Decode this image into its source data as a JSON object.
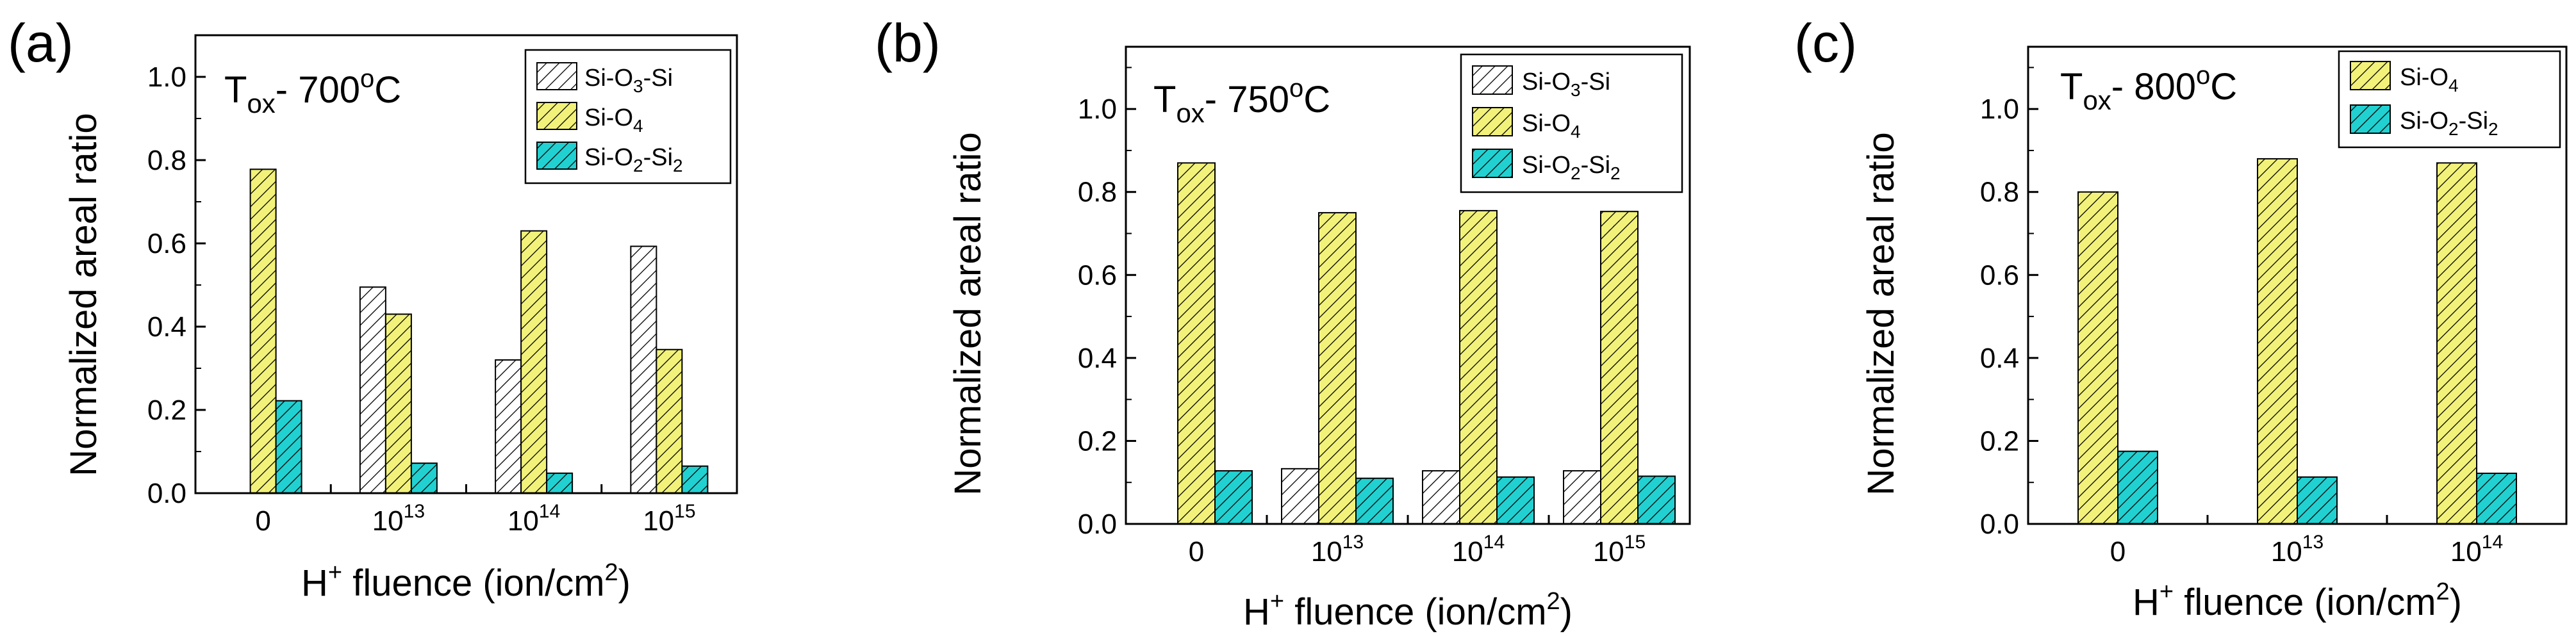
{
  "colors": {
    "si_o3_si": "#ffffff",
    "si_o4": "#f2f27a",
    "si_o2_si2": "#21d1d1",
    "hatch": "#000000"
  },
  "chart_data": [
    {
      "type": "bar",
      "panel_label": "(a)",
      "condition": {
        "main": "T",
        "sub": "ox",
        "text": "- 700",
        "sup": "o",
        "unit": "C"
      },
      "ylabel": "Normalized areal ratio",
      "xlabel": {
        "pre": "H",
        "sup": "+",
        "text": " fluence (ion/cm",
        "sup2": "2",
        "post": ")"
      },
      "ylim": [
        0,
        1.1
      ],
      "yticks": [
        "0.0",
        "0.2",
        "0.4",
        "0.6",
        "0.8",
        "1.0"
      ],
      "categories": [
        {
          "base": "0",
          "exp": ""
        },
        {
          "base": "10",
          "exp": "13"
        },
        {
          "base": "10",
          "exp": "14"
        },
        {
          "base": "10",
          "exp": "15"
        }
      ],
      "series": [
        {
          "key": "si_o3_si",
          "name": {
            "a": "Si-O",
            "sub": "3",
            "b": "-Si",
            "sub2": "",
            "c": ""
          },
          "values": [
            null,
            0.495,
            0.32,
            0.593
          ]
        },
        {
          "key": "si_o4",
          "name": {
            "a": "Si-O",
            "sub": "4",
            "b": "",
            "sub2": "",
            "c": ""
          },
          "values": [
            0.778,
            0.43,
            0.63,
            0.345
          ]
        },
        {
          "key": "si_o2_si2",
          "name": {
            "a": "Si-O",
            "sub": "2",
            "b": "-Si",
            "sub2": "2",
            "c": ""
          },
          "values": [
            0.222,
            0.072,
            0.048,
            0.065
          ]
        }
      ]
    },
    {
      "type": "bar",
      "panel_label": "(b)",
      "condition": {
        "main": "T",
        "sub": "ox",
        "text": "- 750",
        "sup": "o",
        "unit": "C"
      },
      "ylabel": "Normalized areal ratio",
      "xlabel": {
        "pre": "H",
        "sup": "+",
        "text": " fluence (ion/cm",
        "sup2": "2",
        "post": ")"
      },
      "ylim": [
        0,
        1.15
      ],
      "yticks": [
        "0.0",
        "0.2",
        "0.4",
        "0.6",
        "0.8",
        "1.0"
      ],
      "categories": [
        {
          "base": "0",
          "exp": ""
        },
        {
          "base": "10",
          "exp": "13"
        },
        {
          "base": "10",
          "exp": "14"
        },
        {
          "base": "10",
          "exp": "15"
        }
      ],
      "series": [
        {
          "key": "si_o3_si",
          "name": {
            "a": "Si-O",
            "sub": "3",
            "b": "-Si",
            "sub2": "",
            "c": ""
          },
          "values": [
            null,
            0.133,
            0.128,
            0.128
          ]
        },
        {
          "key": "si_o4",
          "name": {
            "a": "Si-O",
            "sub": "4",
            "b": "",
            "sub2": "",
            "c": ""
          },
          "values": [
            0.87,
            0.75,
            0.755,
            0.753
          ]
        },
        {
          "key": "si_o2_si2",
          "name": {
            "a": "Si-O",
            "sub": "2",
            "b": "-Si",
            "sub2": "2",
            "c": ""
          },
          "values": [
            0.128,
            0.11,
            0.113,
            0.115
          ]
        }
      ]
    },
    {
      "type": "bar",
      "panel_label": "(c)",
      "condition": {
        "main": "T",
        "sub": "ox",
        "text": "- 800",
        "sup": "o",
        "unit": "C"
      },
      "ylabel": "Normalized areal ratio",
      "xlabel": {
        "pre": "H",
        "sup": "+",
        "text": " fluence (ion/cm",
        "sup2": "2",
        "post": ")"
      },
      "ylim": [
        0,
        1.15
      ],
      "yticks": [
        "0.0",
        "0.2",
        "0.4",
        "0.6",
        "0.8",
        "1.0"
      ],
      "categories": [
        {
          "base": "0",
          "exp": ""
        },
        {
          "base": "10",
          "exp": "13"
        },
        {
          "base": "10",
          "exp": "14"
        }
      ],
      "series": [
        {
          "key": "si_o4",
          "name": {
            "a": "Si-O",
            "sub": "4",
            "b": "",
            "sub2": "",
            "c": ""
          },
          "values": [
            0.8,
            0.88,
            0.87
          ]
        },
        {
          "key": "si_o2_si2",
          "name": {
            "a": "Si-O",
            "sub": "2",
            "b": "-Si",
            "sub2": "2",
            "c": ""
          },
          "values": [
            0.175,
            0.113,
            0.122
          ]
        }
      ]
    }
  ]
}
